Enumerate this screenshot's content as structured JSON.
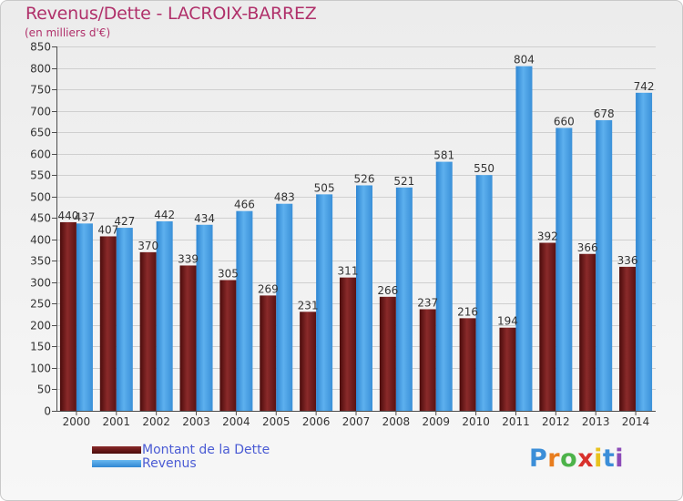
{
  "header": {
    "title": "Revenus/Dette - LACROIX-BARREZ",
    "subtitle": "(en milliers d'€)"
  },
  "brand": {
    "letters": [
      "P",
      "r",
      "o",
      "x",
      "i",
      "t",
      "i"
    ],
    "colors": [
      "#3b8ed8",
      "#e87d1e",
      "#4db34a",
      "#d8312c",
      "#e8c21e",
      "#3b8ed8",
      "#8c4bb8"
    ]
  },
  "colors": {
    "dette": "#6b1a1a",
    "revenus": "#3e95dd",
    "axis": "#4d4d4d",
    "grid": "#cfcfcf"
  },
  "chart_data": {
    "type": "bar",
    "title": "Revenus/Dette - LACROIX-BARREZ",
    "ylabel": "(en milliers d'€)",
    "xlabel": "",
    "ylim": [
      0,
      850
    ],
    "ytick_step": 50,
    "grid": true,
    "legend_position": "bottom-left",
    "categories": [
      "2000",
      "2001",
      "2002",
      "2003",
      "2004",
      "2005",
      "2006",
      "2007",
      "2008",
      "2009",
      "2010",
      "2011",
      "2012",
      "2013",
      "2014"
    ],
    "series": [
      {
        "name": "Montant de la Dette",
        "color": "#6b1a1a",
        "values": [
          440,
          407,
          370,
          339,
          305,
          269,
          231,
          311,
          266,
          237,
          216,
          194,
          392,
          366,
          336
        ]
      },
      {
        "name": "Revenus",
        "color": "#3e95dd",
        "values": [
          437,
          427,
          442,
          434,
          466,
          483,
          505,
          526,
          521,
          581,
          550,
          804,
          660,
          678,
          742
        ]
      }
    ]
  }
}
